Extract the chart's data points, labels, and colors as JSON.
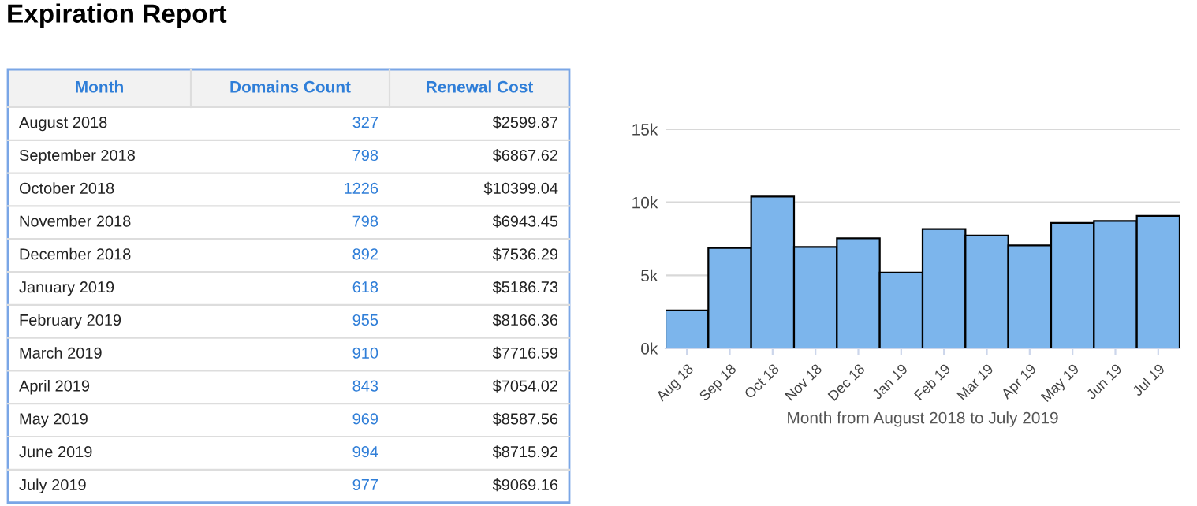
{
  "chart_data": [
    {
      "type": "other",
      "title": "Expiration Report",
      "categories": [
        "Month",
        "Domains Count",
        "Renewal Cost"
      ],
      "annotations": [
        "August 2018",
        "327",
        "$2599.87",
        "September 2018",
        "798",
        "$6867.62",
        "October 2018",
        "1226",
        "$10399.04",
        "November 2018",
        "798",
        "$6943.45",
        "December 2018",
        "892",
        "$7536.29",
        "January 2019",
        "618",
        "$5186.73",
        "February 2019",
        "955",
        "$8166.36",
        "March 2019",
        "910",
        "$7716.59",
        "April 2019",
        "843",
        "$7054.02",
        "May 2019",
        "969",
        "$8587.56",
        "June 2019",
        "994",
        "$8715.92",
        "July 2019",
        "977",
        "$9069.16"
      ]
    },
    {
      "type": "bar",
      "xlabel": "Month from August 2018 to July 2019",
      "categories": [
        "Aug 18",
        "Sep 18",
        "Oct 18",
        "Nov 18",
        "Dec 18",
        "Jan 19",
        "Feb 19",
        "Mar 19",
        "Apr 19",
        "May 19",
        "Jun 19",
        "Jul 19"
      ],
      "values": [
        2599.87,
        6867.62,
        10399.04,
        6943.45,
        7536.29,
        5186.73,
        8166.36,
        7716.59,
        7054.02,
        8587.56,
        8715.92,
        9069.16
      ],
      "color": "#7cb5ec",
      "ylim": [
        0,
        15000
      ],
      "yticks": [
        {
          "value": 0,
          "label": "0k"
        },
        {
          "value": 5000,
          "label": "5k"
        },
        {
          "value": 10000,
          "label": "10k"
        },
        {
          "value": 15000,
          "label": "15k"
        }
      ],
      "grid": "y",
      "legend": false
    }
  ]
}
